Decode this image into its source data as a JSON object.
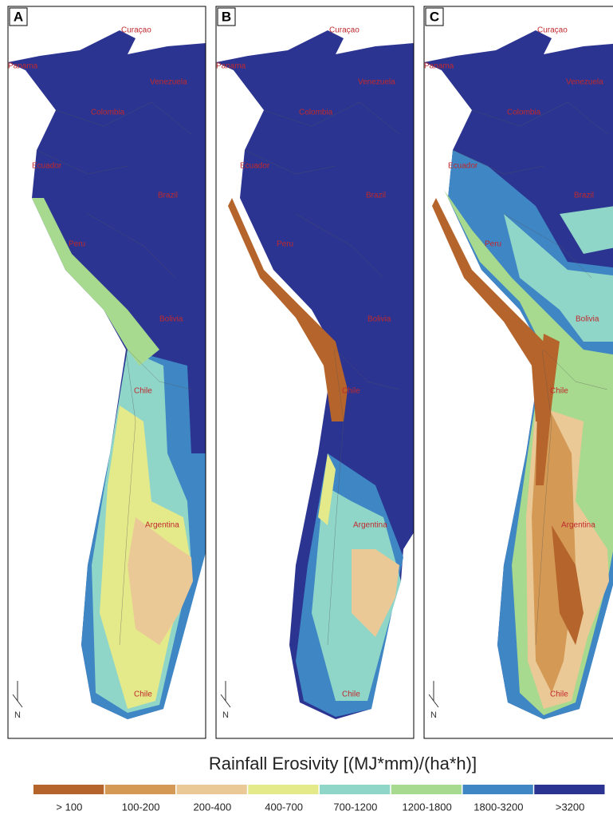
{
  "panels": [
    {
      "label": "A",
      "places": [
        "Curaçao",
        "Panama",
        "Venezuela",
        "Colombia",
        "Ecuador",
        "Brazil",
        "Peru",
        "Bolivia",
        "Chile",
        "Argentina",
        "Chile"
      ]
    },
    {
      "label": "B",
      "places": [
        "Curaçao",
        "Panama",
        "Venezuela",
        "Colombia",
        "Ecuador",
        "Brazil",
        "Peru",
        "Bolivia",
        "Chile",
        "Argentina",
        "Chile"
      ]
    },
    {
      "label": "C",
      "places": [
        "Curaçao",
        "Panama",
        "Venezuela",
        "Colombia",
        "Ecuador",
        "Brazil",
        "Peru",
        "Bolivia",
        "Chile",
        "Argentina",
        "Chile"
      ]
    }
  ],
  "north_label": "N",
  "legend": {
    "title": "Rainfall Erosivity [(MJ*mm)/(ha*h)]",
    "classes": [
      {
        "label": "> 100",
        "color": "#b5652b"
      },
      {
        "label": "100-200",
        "color": "#d49a55"
      },
      {
        "label": "200-400",
        "color": "#ebc996"
      },
      {
        "label": "400-700",
        "color": "#e4e98a"
      },
      {
        "label": "700-1200",
        "color": "#8fd6c9"
      },
      {
        "label": "1200-1800",
        "color": "#a7d98f"
      },
      {
        "label": "1800-3200",
        "color": "#3f86c4"
      },
      {
        "label": ">3200",
        "color": "#2b3591"
      }
    ]
  }
}
